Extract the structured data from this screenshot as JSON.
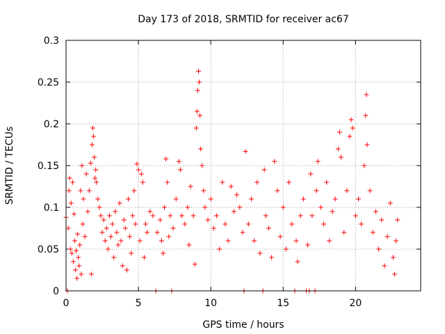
{
  "chart_data": {
    "type": "scatter",
    "title": "Day 173 of 2018, SRMTID for receiver ac67",
    "xlabel": "GPS time / hours",
    "ylabel": "SRMTID / TECUs",
    "xlim": [
      0,
      24.5
    ],
    "ylim": [
      0,
      0.3
    ],
    "grid": true,
    "marker": "plus",
    "marker_color": "#ff0000",
    "x_ticks": [
      {
        "value": 0,
        "label": "0"
      },
      {
        "value": 5,
        "label": "5"
      },
      {
        "value": 10,
        "label": "10"
      },
      {
        "value": 15,
        "label": "15"
      },
      {
        "value": 20,
        "label": "20"
      }
    ],
    "y_ticks": [
      {
        "value": 0,
        "label": "0"
      },
      {
        "value": 0.05,
        "label": "0.05"
      },
      {
        "value": 0.1,
        "label": "0.1"
      },
      {
        "value": 0.15,
        "label": "0.15"
      },
      {
        "value": 0.2,
        "label": "0.2"
      },
      {
        "value": 0.25,
        "label": "0.25"
      },
      {
        "value": 0.3,
        "label": "0.3"
      }
    ],
    "series": [
      {
        "name": "SRMTID",
        "points": [
          [
            0.0,
            0.088
          ],
          [
            0.1,
            0.0
          ],
          [
            0.15,
            0.075
          ],
          [
            0.2,
            0.12
          ],
          [
            0.25,
            0.135
          ],
          [
            0.3,
            0.05
          ],
          [
            0.35,
            0.105
          ],
          [
            0.4,
            0.045
          ],
          [
            0.45,
            0.13
          ],
          [
            0.5,
            0.035
          ],
          [
            0.55,
            0.092
          ],
          [
            0.6,
            0.06
          ],
          [
            0.65,
            0.025
          ],
          [
            0.7,
            0.048
          ],
          [
            0.75,
            0.015
          ],
          [
            0.8,
            0.068
          ],
          [
            0.85,
            0.04
          ],
          [
            0.9,
            0.03
          ],
          [
            0.95,
            0.055
          ],
          [
            1.0,
            0.12
          ],
          [
            1.05,
            0.02
          ],
          [
            1.1,
            0.15
          ],
          [
            1.15,
            0.08
          ],
          [
            1.2,
            0.11
          ],
          [
            1.3,
            0.065
          ],
          [
            1.4,
            0.14
          ],
          [
            1.5,
            0.095
          ],
          [
            1.6,
            0.12
          ],
          [
            1.7,
            0.153
          ],
          [
            1.75,
            0.02
          ],
          [
            1.8,
            0.175
          ],
          [
            1.85,
            0.195
          ],
          [
            1.9,
            0.185
          ],
          [
            1.95,
            0.16
          ],
          [
            2.0,
            0.135
          ],
          [
            2.05,
            0.145
          ],
          [
            2.1,
            0.13
          ],
          [
            2.2,
            0.11
          ],
          [
            2.3,
            0.1
          ],
          [
            2.4,
            0.09
          ],
          [
            2.5,
            0.07
          ],
          [
            2.6,
            0.085
          ],
          [
            2.7,
            0.06
          ],
          [
            2.8,
            0.075
          ],
          [
            2.9,
            0.05
          ],
          [
            3.0,
            0.09
          ],
          [
            3.1,
            0.065
          ],
          [
            3.2,
            0.08
          ],
          [
            3.3,
            0.04
          ],
          [
            3.4,
            0.095
          ],
          [
            3.5,
            0.07
          ],
          [
            3.6,
            0.055
          ],
          [
            3.7,
            0.105
          ],
          [
            3.8,
            0.06
          ],
          [
            3.9,
            0.03
          ],
          [
            4.0,
            0.085
          ],
          [
            4.1,
            0.075
          ],
          [
            4.2,
            0.025
          ],
          [
            4.3,
            0.11
          ],
          [
            4.4,
            0.065
          ],
          [
            4.5,
            0.045
          ],
          [
            4.6,
            0.09
          ],
          [
            4.7,
            0.12
          ],
          [
            4.8,
            0.08
          ],
          [
            4.9,
            0.152
          ],
          [
            5.0,
            0.145
          ],
          [
            5.1,
            0.06
          ],
          [
            5.2,
            0.14
          ],
          [
            5.3,
            0.13
          ],
          [
            5.4,
            0.04
          ],
          [
            5.5,
            0.08
          ],
          [
            5.6,
            0.07
          ],
          [
            5.8,
            0.095
          ],
          [
            6.0,
            0.09
          ],
          [
            6.2,
            0.0
          ],
          [
            6.3,
            0.07
          ],
          [
            6.5,
            0.085
          ],
          [
            6.6,
            0.06
          ],
          [
            6.7,
            0.045
          ],
          [
            6.8,
            0.1
          ],
          [
            6.9,
            0.158
          ],
          [
            7.0,
            0.13
          ],
          [
            7.1,
            0.065
          ],
          [
            7.2,
            0.09
          ],
          [
            7.3,
            0.0
          ],
          [
            7.4,
            0.075
          ],
          [
            7.6,
            0.11
          ],
          [
            7.8,
            0.155
          ],
          [
            7.9,
            0.145
          ],
          [
            8.0,
            0.09
          ],
          [
            8.2,
            0.08
          ],
          [
            8.4,
            0.1
          ],
          [
            8.5,
            0.055
          ],
          [
            8.6,
            0.125
          ],
          [
            8.8,
            0.09
          ],
          [
            8.9,
            0.032
          ],
          [
            9.0,
            0.195
          ],
          [
            9.05,
            0.215
          ],
          [
            9.1,
            0.24
          ],
          [
            9.15,
            0.263
          ],
          [
            9.2,
            0.25
          ],
          [
            9.25,
            0.21
          ],
          [
            9.3,
            0.17
          ],
          [
            9.4,
            0.15
          ],
          [
            9.5,
            0.12
          ],
          [
            9.6,
            0.1
          ],
          [
            9.8,
            0.085
          ],
          [
            10.0,
            0.11
          ],
          [
            10.2,
            0.075
          ],
          [
            10.4,
            0.09
          ],
          [
            10.6,
            0.05
          ],
          [
            10.8,
            0.13
          ],
          [
            11.0,
            0.08
          ],
          [
            11.2,
            0.06
          ],
          [
            11.4,
            0.125
          ],
          [
            11.6,
            0.095
          ],
          [
            11.8,
            0.115
          ],
          [
            12.0,
            0.1
          ],
          [
            12.2,
            0.07
          ],
          [
            12.3,
            0.0
          ],
          [
            12.4,
            0.167
          ],
          [
            12.6,
            0.08
          ],
          [
            12.8,
            0.11
          ],
          [
            13.0,
            0.06
          ],
          [
            13.2,
            0.13
          ],
          [
            13.4,
            0.045
          ],
          [
            13.6,
            0.0
          ],
          [
            13.7,
            0.145
          ],
          [
            13.8,
            0.09
          ],
          [
            14.0,
            0.075
          ],
          [
            14.2,
            0.04
          ],
          [
            14.4,
            0.155
          ],
          [
            14.6,
            0.12
          ],
          [
            14.8,
            0.065
          ],
          [
            15.0,
            0.1
          ],
          [
            15.2,
            0.05
          ],
          [
            15.4,
            0.13
          ],
          [
            15.6,
            0.08
          ],
          [
            15.8,
            0.0
          ],
          [
            15.9,
            0.06
          ],
          [
            16.0,
            0.035
          ],
          [
            16.2,
            0.09
          ],
          [
            16.4,
            0.11
          ],
          [
            16.6,
            0.0
          ],
          [
            16.7,
            0.055
          ],
          [
            16.8,
            0.0
          ],
          [
            16.9,
            0.14
          ],
          [
            17.0,
            0.09
          ],
          [
            17.2,
            0.0
          ],
          [
            17.3,
            0.12
          ],
          [
            17.4,
            0.155
          ],
          [
            17.6,
            0.1
          ],
          [
            17.8,
            0.08
          ],
          [
            18.0,
            0.13
          ],
          [
            18.2,
            0.06
          ],
          [
            18.4,
            0.095
          ],
          [
            18.6,
            0.11
          ],
          [
            18.8,
            0.17
          ],
          [
            18.9,
            0.19
          ],
          [
            19.0,
            0.16
          ],
          [
            19.2,
            0.07
          ],
          [
            19.4,
            0.12
          ],
          [
            19.6,
            0.185
          ],
          [
            19.7,
            0.205
          ],
          [
            19.8,
            0.195
          ],
          [
            20.0,
            0.09
          ],
          [
            20.2,
            0.11
          ],
          [
            20.4,
            0.08
          ],
          [
            20.6,
            0.15
          ],
          [
            20.7,
            0.21
          ],
          [
            20.75,
            0.235
          ],
          [
            20.8,
            0.175
          ],
          [
            21.0,
            0.12
          ],
          [
            21.2,
            0.07
          ],
          [
            21.4,
            0.095
          ],
          [
            21.6,
            0.05
          ],
          [
            21.8,
            0.085
          ],
          [
            22.0,
            0.03
          ],
          [
            22.2,
            0.065
          ],
          [
            22.4,
            0.105
          ],
          [
            22.6,
            0.04
          ],
          [
            22.7,
            0.02
          ],
          [
            22.8,
            0.06
          ],
          [
            22.9,
            0.085
          ]
        ]
      }
    ]
  }
}
